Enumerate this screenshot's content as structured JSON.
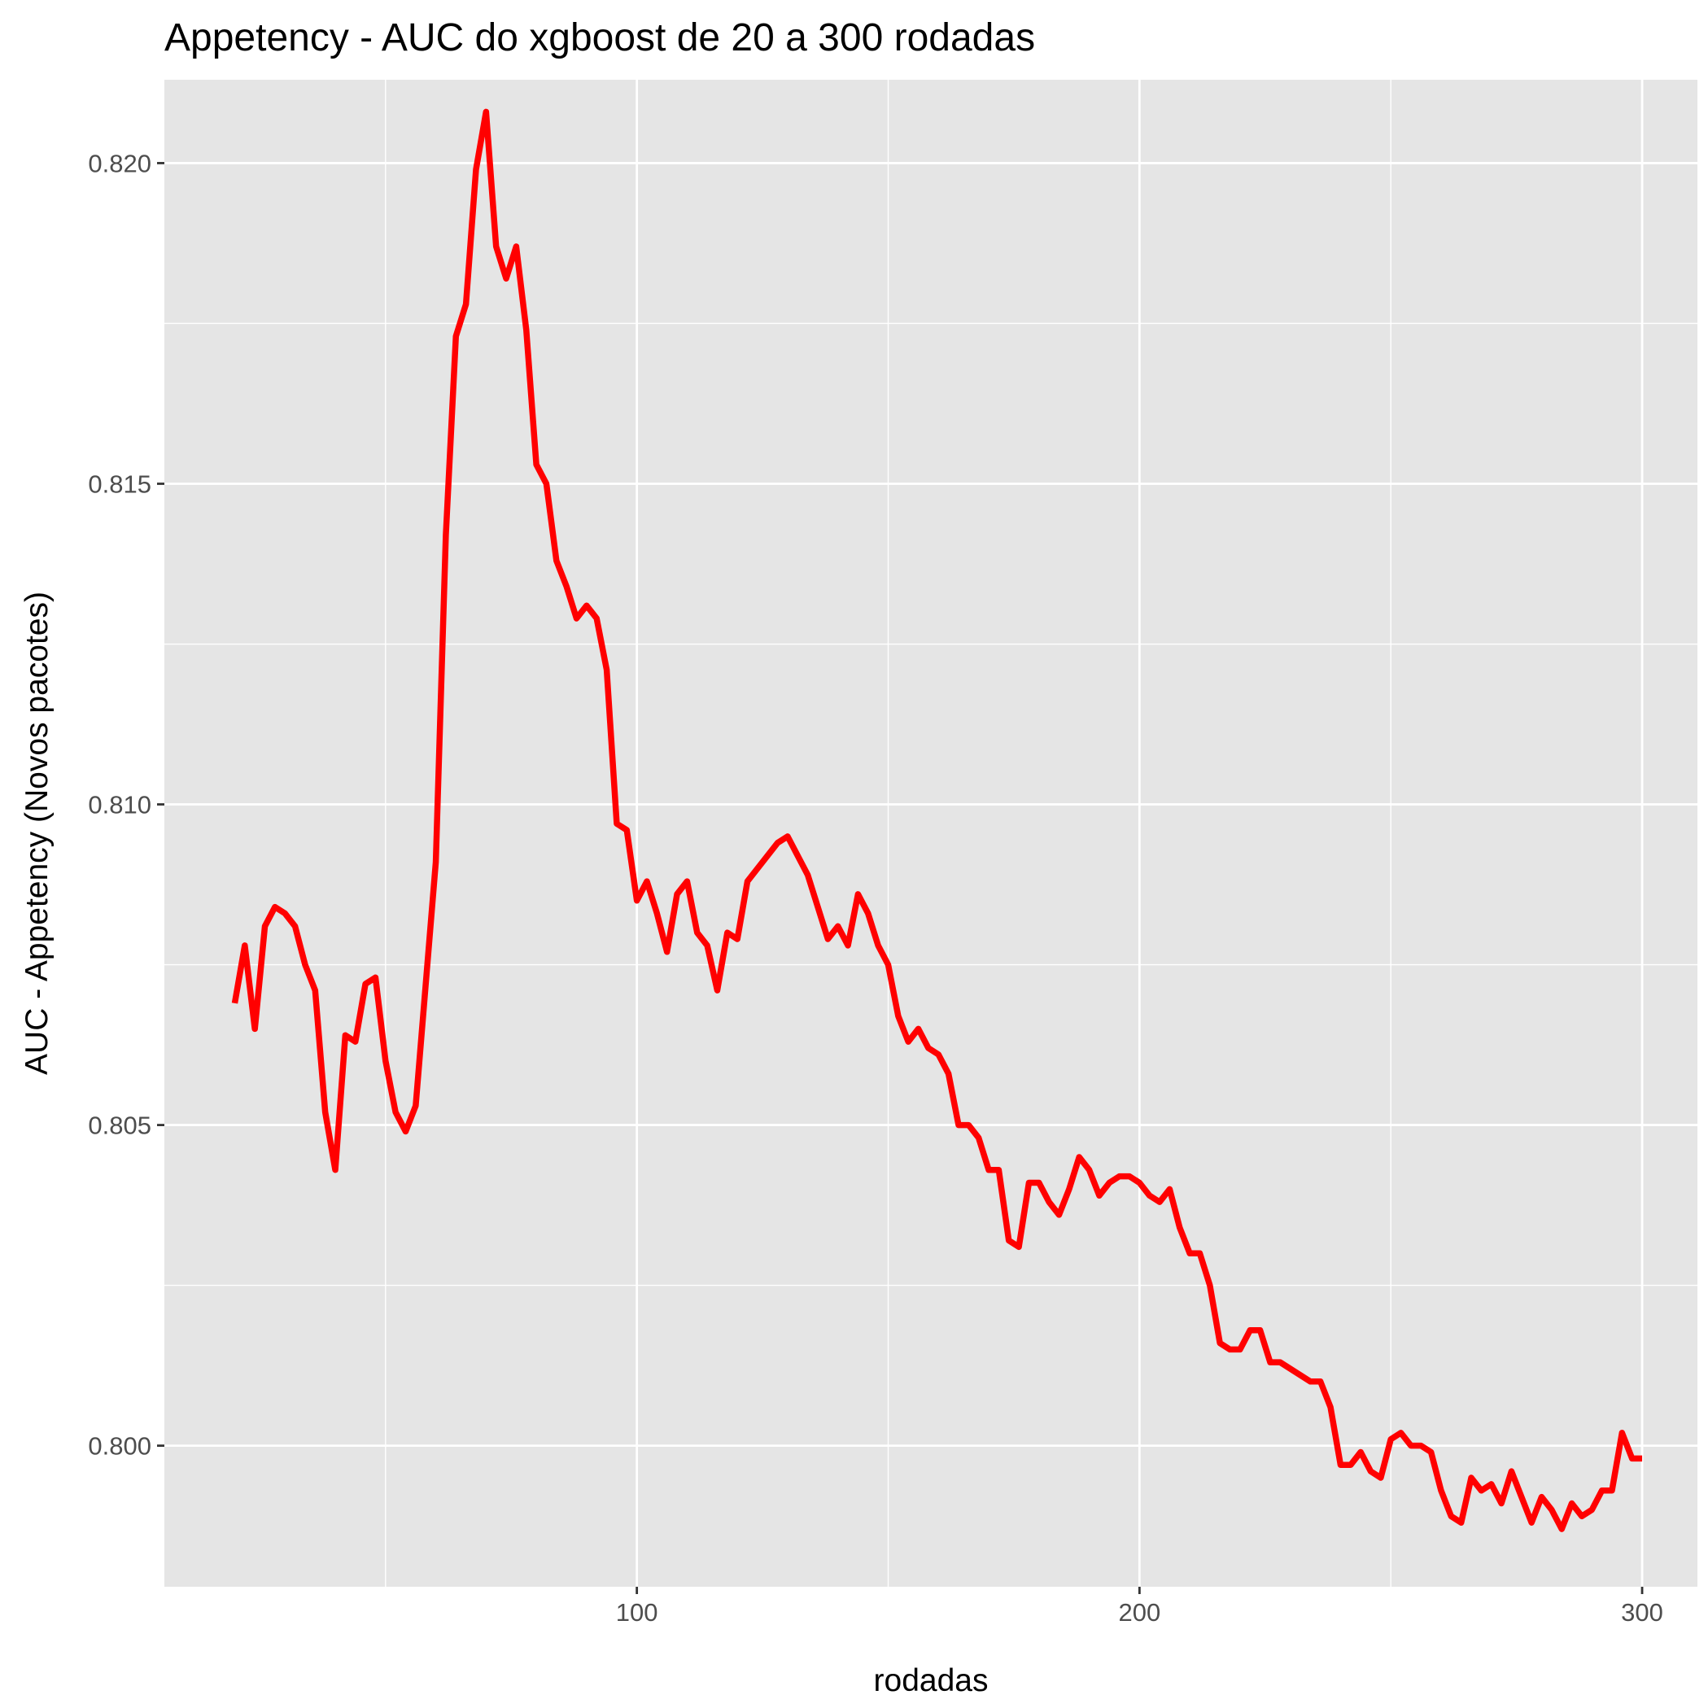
{
  "chart_data": {
    "type": "line",
    "title": "Appetency - AUC do xgboost de 20 a 300 rodadas",
    "xlabel": "rodadas",
    "ylabel": "AUC - Appetency (Novos pacotes)",
    "xlim": [
      6,
      311
    ],
    "ylim": [
      0.7978,
      0.8213
    ],
    "x_ticks": [
      100,
      200,
      300
    ],
    "x_tick_labels": [
      "100",
      "200",
      "300"
    ],
    "y_ticks": [
      0.8,
      0.805,
      0.81,
      0.815,
      0.82
    ],
    "y_tick_labels": [
      "0.800",
      "0.805",
      "0.810",
      "0.815",
      "0.820"
    ],
    "grid": true,
    "panel_background": "#e5e5e5",
    "line_color": "#ff0000",
    "series": [
      {
        "x": [
          20,
          22,
          24,
          26,
          28,
          30,
          32,
          34,
          36,
          38,
          40,
          42,
          44,
          46,
          48,
          50,
          52,
          54,
          56,
          58,
          60,
          62,
          64,
          66,
          68,
          70,
          72,
          74,
          76,
          78,
          80,
          82,
          84,
          86,
          88,
          90,
          92,
          94,
          96,
          98,
          100,
          102,
          104,
          106,
          108,
          110,
          112,
          114,
          116,
          118,
          120,
          122,
          124,
          126,
          128,
          130,
          132,
          134,
          136,
          138,
          140,
          142,
          144,
          146,
          148,
          150,
          152,
          154,
          156,
          158,
          160,
          162,
          164,
          166,
          168,
          170,
          172,
          174,
          176,
          178,
          180,
          182,
          184,
          186,
          188,
          190,
          192,
          194,
          196,
          198,
          200,
          202,
          204,
          206,
          208,
          210,
          212,
          214,
          216,
          218,
          220,
          222,
          224,
          226,
          228,
          230,
          232,
          234,
          236,
          238,
          240,
          242,
          244,
          246,
          248,
          250,
          252,
          254,
          256,
          258,
          260,
          262,
          264,
          266,
          268,
          270,
          272,
          274,
          276,
          278,
          280,
          282,
          284,
          286,
          288,
          290,
          292,
          294,
          296,
          298,
          300
        ],
        "values": [
          0.8069,
          0.8078,
          0.8065,
          0.8081,
          0.8084,
          0.8083,
          0.8081,
          0.8075,
          0.8071,
          0.8052,
          0.8043,
          0.8064,
          0.8063,
          0.8072,
          0.8073,
          0.806,
          0.8052,
          0.8049,
          0.8053,
          0.8072,
          0.8091,
          0.8142,
          0.8173,
          0.8178,
          0.8199,
          0.8208,
          0.8187,
          0.8182,
          0.8187,
          0.8174,
          0.8153,
          0.815,
          0.8138,
          0.8134,
          0.8129,
          0.8131,
          0.8129,
          0.8121,
          0.8097,
          0.8096,
          0.8085,
          0.8088,
          0.8083,
          0.8077,
          0.8086,
          0.8088,
          0.808,
          0.8078,
          0.8071,
          0.808,
          0.8079,
          0.8088,
          0.809,
          0.8092,
          0.8094,
          0.8095,
          0.8092,
          0.8089,
          0.8084,
          0.8079,
          0.8081,
          0.8078,
          0.8086,
          0.8083,
          0.8078,
          0.8075,
          0.8067,
          0.8063,
          0.8065,
          0.8062,
          0.8061,
          0.8058,
          0.805,
          0.805,
          0.8048,
          0.8043,
          0.8043,
          0.8032,
          0.8031,
          0.8041,
          0.8041,
          0.8038,
          0.8036,
          0.804,
          0.8045,
          0.8043,
          0.8039,
          0.8041,
          0.8042,
          0.8042,
          0.8041,
          0.8039,
          0.8038,
          0.804,
          0.8034,
          0.803,
          0.803,
          0.8025,
          0.8016,
          0.8015,
          0.8015,
          0.8018,
          0.8018,
          0.8013,
          0.8013,
          0.8012,
          0.8011,
          0.801,
          0.801,
          0.8006,
          0.7997,
          0.7997,
          0.7999,
          0.7996,
          0.7995,
          0.8001,
          0.8002,
          0.8,
          0.8,
          0.7999,
          0.7993,
          0.7989,
          0.7988,
          0.7995,
          0.7993,
          0.7994,
          0.7991,
          0.7996,
          0.7992,
          0.7988,
          0.7992,
          0.799,
          0.7987,
          0.7991,
          0.7989,
          0.799,
          0.7993,
          0.7993,
          0.8002,
          0.7998,
          0.7998
        ]
      }
    ]
  }
}
